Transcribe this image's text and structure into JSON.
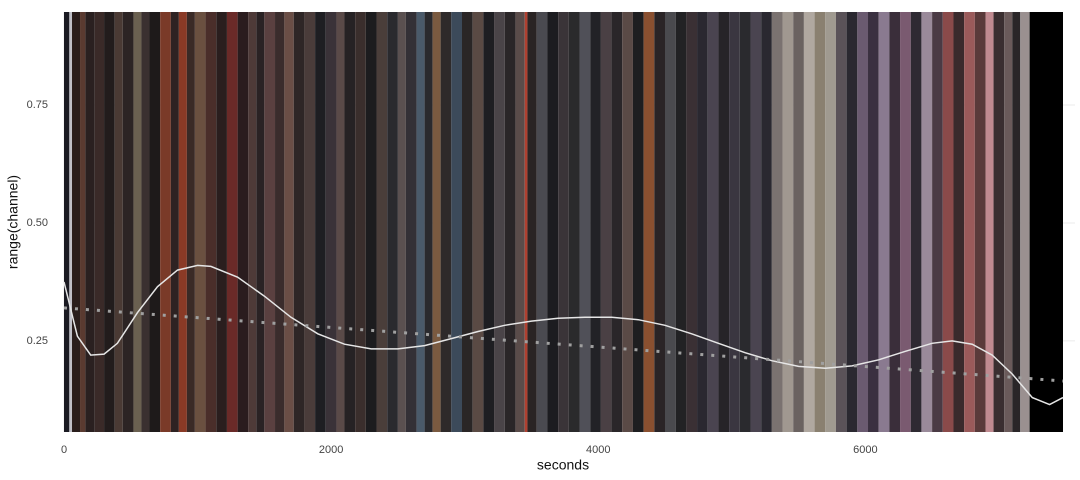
{
  "chart_data": {
    "type": "barcode",
    "x_label": "seconds",
    "y_label": "range(channel)",
    "xlim": [
      0,
      7480
    ],
    "ylim": [
      0.057,
      0.947
    ],
    "xticks": [
      0,
      2000,
      4000,
      6000
    ],
    "yticks": [
      0.25,
      {
        "value": 0.5,
        "label": "0.50"
      },
      0.75
    ],
    "grid": true,
    "stripes": {
      "x": [
        0,
        40,
        60,
        120,
        160,
        230,
        300,
        380,
        440,
        520,
        580,
        640,
        720,
        800,
        860,
        920,
        980,
        1060,
        1140,
        1220,
        1300,
        1380,
        1440,
        1500,
        1580,
        1650,
        1720,
        1800,
        1880,
        1960,
        2040,
        2100,
        2180,
        2260,
        2340,
        2420,
        2500,
        2560,
        2640,
        2700,
        2760,
        2820,
        2900,
        2980,
        3060,
        3140,
        3220,
        3300,
        3380,
        3450,
        3470,
        3540,
        3620,
        3700,
        3780,
        3860,
        3940,
        4020,
        4100,
        4180,
        4260,
        4340,
        4420,
        4500,
        4580,
        4660,
        4740,
        4820,
        4900,
        4980,
        5060,
        5140,
        5220,
        5300,
        5380,
        5460,
        5540,
        5620,
        5700,
        5780,
        5860,
        5940,
        6020,
        6100,
        6180,
        6260,
        6340,
        6420,
        6500,
        6580,
        6660,
        6740,
        6820,
        6900,
        6960,
        7040,
        7100,
        7160,
        7230
      ],
      "colors": [
        "#1a1a22",
        "#c0c0c8",
        "#2a1e1c",
        "#5a3a30",
        "#2a2020",
        "#3a2a28",
        "#221c1c",
        "#4a3a34",
        "#2c2424",
        "#6a6050",
        "#3a3030",
        "#1e1a1a",
        "#7a3a28",
        "#2e2222",
        "#8a3a26",
        "#3a2a26",
        "#6a5040",
        "#4a2e2a",
        "#2a1e1e",
        "#6a2a28",
        "#2a1c1e",
        "#4e3a38",
        "#2a2224",
        "#5a4040",
        "#3a2c2c",
        "#6a4e46",
        "#2e2626",
        "#4a3c3a",
        "#1e1e22",
        "#3a3238",
        "#5a4a48",
        "#262224",
        "#3a2e2c",
        "#1c1c1e",
        "#4a3e3a",
        "#2a2a2e",
        "#5a5050",
        "#333036",
        "#4a5a6a",
        "#2a2a2e",
        "#7a5a40",
        "#2e2a2a",
        "#3c4a5a",
        "#2a2626",
        "#5a4a44",
        "#1e1e22",
        "#4a4448",
        "#2a2628",
        "#5a4c4a",
        "#b04030",
        "#2a2424",
        "#4a4a50",
        "#1c1c20",
        "#3a3438",
        "#2a2a2c",
        "#505058",
        "#222226",
        "#4a4044",
        "#2a2629",
        "#5a4a46",
        "#1e1e20",
        "#8a5030",
        "#2a2426",
        "#4a4a4e",
        "#222224",
        "#3a3034",
        "#2a2830",
        "#4a4450",
        "#262428",
        "#3a3640",
        "#2a2a2e",
        "#4a4450",
        "#2a2830",
        "#7a7270",
        "#a09890",
        "#6a6260",
        "#b0a8a0",
        "#8a8070",
        "#a09a90",
        "#5a5258",
        "#2a2830",
        "#6a5a70",
        "#3a3040",
        "#8a7a90",
        "#3a2e3a",
        "#7a5a70",
        "#2e2a32",
        "#9a8a9a",
        "#4a3a44",
        "#8a4a4a",
        "#3a2a2c",
        "#9a5a5a",
        "#5a3a3a",
        "#c08a90",
        "#3a2e30",
        "#6a5a5a",
        "#2a2628",
        "#9a9090",
        "#000000"
      ]
    },
    "series": [
      {
        "color": "#e6e6e6",
        "style": "solid",
        "x": [
          0,
          100,
          200,
          300,
          400,
          550,
          700,
          850,
          1000,
          1100,
          1300,
          1500,
          1700,
          1900,
          2100,
          2300,
          2500,
          2700,
          2900,
          3100,
          3300,
          3500,
          3700,
          3900,
          4100,
          4300,
          4500,
          4700,
          4900,
          5100,
          5300,
          5500,
          5700,
          5900,
          6100,
          6300,
          6500,
          6650,
          6800,
          6950,
          7100,
          7250,
          7380,
          7480
        ],
        "values": [
          0.375,
          0.26,
          0.22,
          0.222,
          0.245,
          0.31,
          0.365,
          0.4,
          0.41,
          0.408,
          0.385,
          0.345,
          0.3,
          0.265,
          0.243,
          0.233,
          0.233,
          0.24,
          0.255,
          0.27,
          0.283,
          0.292,
          0.298,
          0.3,
          0.3,
          0.295,
          0.283,
          0.265,
          0.245,
          0.225,
          0.208,
          0.196,
          0.192,
          0.197,
          0.21,
          0.228,
          0.245,
          0.25,
          0.243,
          0.22,
          0.18,
          0.13,
          0.115,
          0.13
        ]
      },
      {
        "color": "#a0a0a0",
        "style": "dotted",
        "x": [
          0,
          7480
        ],
        "values": [
          0.32,
          0.165
        ]
      }
    ]
  }
}
